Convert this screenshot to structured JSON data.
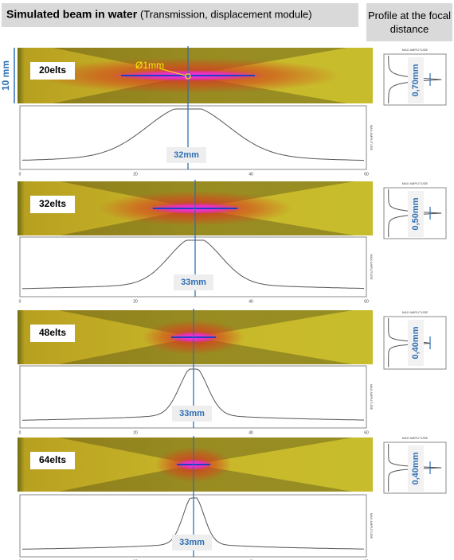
{
  "header": {
    "title": "Simulated beam in water",
    "subtitle": "(Transmission, displacement module)",
    "side_title": "Profile at the focal distance"
  },
  "scale_label": "10 mm",
  "diameter_label": "Ø1mm",
  "panels": [
    {
      "label": "20elts",
      "focal_depth": "32mm",
      "focal_width": "0,70mm"
    },
    {
      "label": "32elts",
      "focal_depth": "33mm",
      "focal_width": "0,50mm"
    },
    {
      "label": "48elts",
      "focal_depth": "33mm",
      "focal_width": "0,40mm"
    },
    {
      "label": "64elts",
      "focal_depth": "33mm",
      "focal_width": "0,40mm"
    }
  ],
  "axis_ticks": [
    "0",
    "20",
    "40",
    "60"
  ],
  "amplitude_label": "MAX AMPLITUDE"
}
